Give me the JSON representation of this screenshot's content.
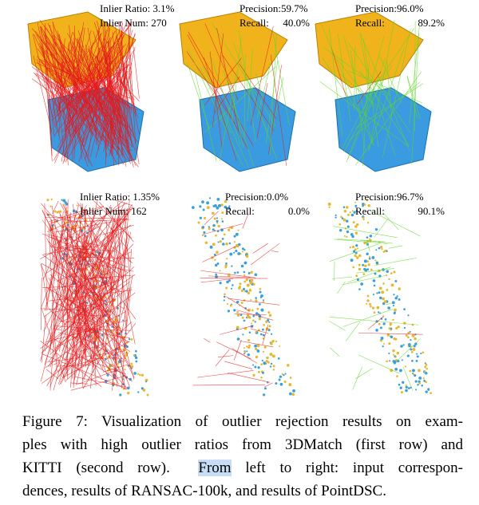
{
  "figure": {
    "panels": [
      {
        "line1": "Inlier Ratio: 3.1%",
        "line2": "Inlier Num: 270"
      },
      {
        "line1": "Precision:59.7%",
        "line2": "Recall:",
        "line2_value": "40.0%"
      },
      {
        "line1": "Precision:96.0%",
        "line2": "Recall:",
        "line2_value": "89.2%"
      },
      {
        "line1": "Inlier Ratio: 1.35%",
        "line2": "Inlier Num: 162"
      },
      {
        "line1": "Precision:0.0%",
        "line2": "Recall:",
        "line2_value": "0.0%"
      },
      {
        "line1": "Precision:96.7%",
        "line2": "Recall:",
        "line2_value": "90.1%"
      }
    ]
  },
  "caption": {
    "lines": [
      "Figure 7: Visualization of outlier rejection results on exam-",
      "ples with high outlier ratios from 3DMatch (first row) and",
      {
        "before": "KITTI (second row).",
        "highlight": "From",
        "after": "left to right:  input correspon-"
      },
      "dences, results of RANSAC-100k, and results of PointDSC."
    ]
  }
}
